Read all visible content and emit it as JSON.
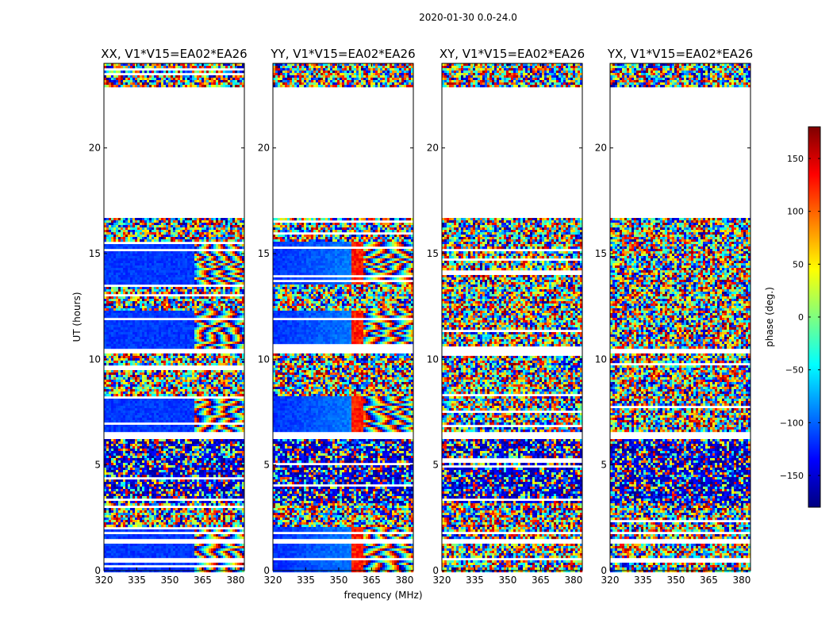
{
  "figure": {
    "suptitle": "2020-01-30 0.0-24.0",
    "xlabel": "frequency (MHz)",
    "ylabel": "UT (hours)"
  },
  "chart_data": {
    "type": "heatmap",
    "suptitle": "2020-01-30 0.0-24.0",
    "xlabel": "frequency (MHz)",
    "ylabel": "UT (hours)",
    "xlim": [
      320,
      384
    ],
    "ylim": [
      0,
      24
    ],
    "xticks": [
      320,
      335,
      350,
      365,
      380
    ],
    "yticks": [
      0,
      5,
      10,
      15,
      20
    ],
    "panels": [
      {
        "title": "XX, V1*V15=EA02*EA26",
        "pol": "XX"
      },
      {
        "title": "YY, V1*V15=EA02*EA26",
        "pol": "YY"
      },
      {
        "title": "XY, V1*V15=EA02*EA26",
        "pol": "XY"
      },
      {
        "title": "YX, V1*V15=EA02*EA26",
        "pol": "YX"
      }
    ],
    "gaps_hours": [
      [
        0.5,
        0.65
      ],
      [
        1.3,
        1.45
      ],
      [
        1.7,
        1.85
      ],
      [
        2.05,
        2.1
      ],
      [
        6.2,
        6.55
      ],
      [
        10.3,
        10.45
      ],
      [
        12.25,
        12.35
      ],
      [
        16.7,
        22.85
      ]
    ],
    "colorbar": {
      "label": "phase (deg.)",
      "range": [
        -180,
        180
      ],
      "ticks": [
        -150,
        -100,
        -50,
        0,
        50,
        100,
        150
      ],
      "tick_labels": [
        "−150",
        "−100",
        "−50",
        "0",
        "50",
        "100",
        "150"
      ],
      "colormap": "jet",
      "stops": [
        "#00007f",
        "#0000ff",
        "#007fff",
        "#00ffff",
        "#7fff7f",
        "#ffff00",
        "#ff7f00",
        "#ff0000",
        "#7f0000"
      ]
    }
  }
}
